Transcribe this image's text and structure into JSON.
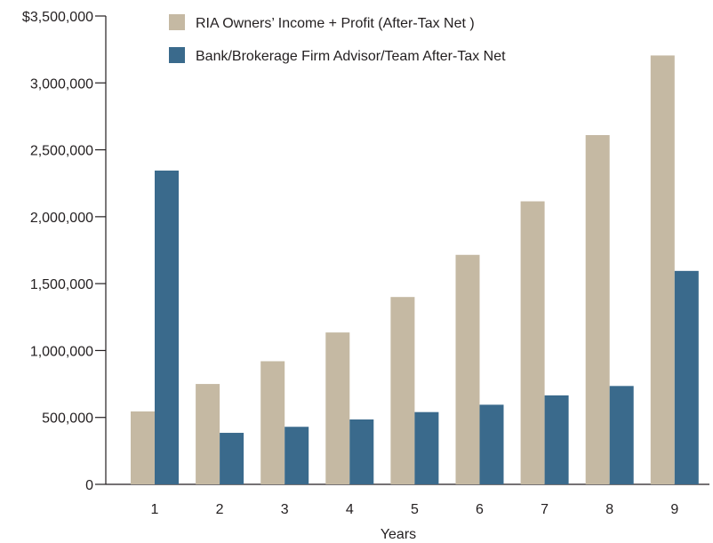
{
  "chart_data": {
    "type": "bar",
    "title": "",
    "xlabel": "Years",
    "ylabel": "",
    "categories": [
      "1",
      "2",
      "3",
      "4",
      "5",
      "6",
      "7",
      "8",
      "9"
    ],
    "ylim": [
      0,
      3500000
    ],
    "yticks": [
      {
        "value": 0,
        "label": "0"
      },
      {
        "value": 500000,
        "label": "500,000"
      },
      {
        "value": 1000000,
        "label": "1,000,000"
      },
      {
        "value": 1500000,
        "label": "1,500,000"
      },
      {
        "value": 2000000,
        "label": "2,000,000"
      },
      {
        "value": 2500000,
        "label": "2,500,000"
      },
      {
        "value": 3000000,
        "label": "3,000,000"
      },
      {
        "value": 3500000,
        "label": "$3,500,000"
      }
    ],
    "grid": false,
    "legend_position": "top-center",
    "series": [
      {
        "name": "RIA Owners’ Income + Profit (After-Tax Net )",
        "color": "#c5b9a3",
        "values": [
          545000,
          750000,
          920000,
          1135000,
          1400000,
          1715000,
          2115000,
          2610000,
          3205000
        ]
      },
      {
        "name": "Bank/Brokerage Firm Advisor/Team After-Tax Net",
        "color": "#3a6a8c",
        "values": [
          2345000,
          385000,
          430000,
          485000,
          540000,
          595000,
          665000,
          735000,
          1595000
        ]
      }
    ]
  }
}
